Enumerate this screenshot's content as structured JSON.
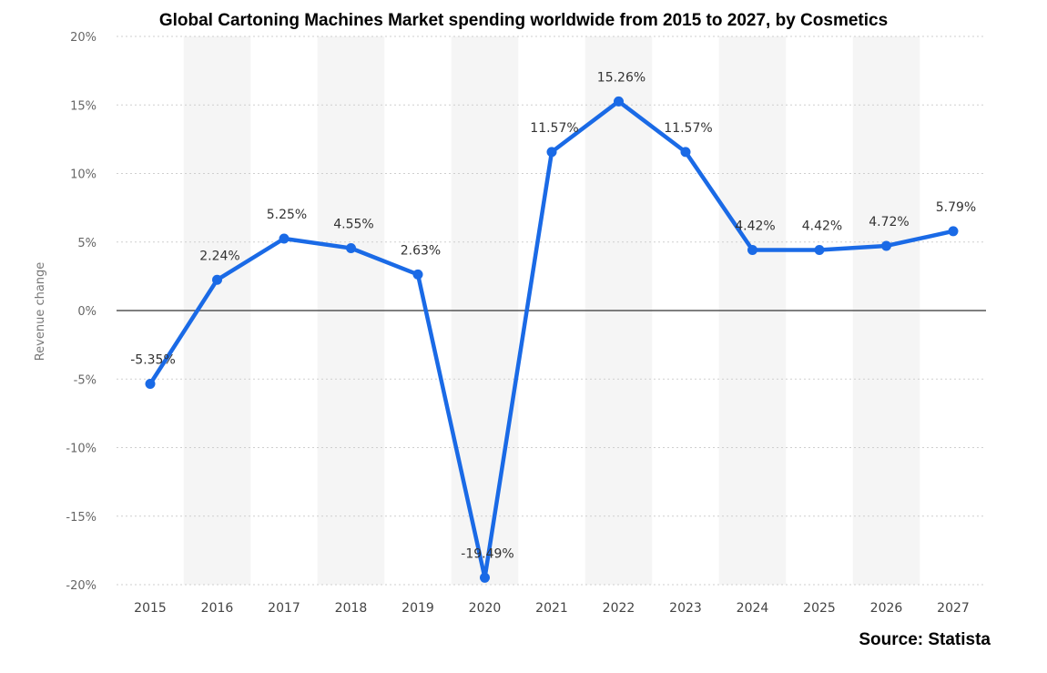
{
  "chart_data": {
    "type": "line",
    "title": "Global Cartoning Machines Market spending worldwide from 2015 to 2027, by Cosmetics",
    "source": "Source: Statista",
    "xlabel": "",
    "ylabel": "Revenue change",
    "ylim": [
      -20,
      20
    ],
    "yticks": [
      "20%",
      "15%",
      "10%",
      "5%",
      "0%",
      "-5%",
      "-10%",
      "-15%",
      "-20%"
    ],
    "categories": [
      "2015",
      "2016",
      "2017",
      "2018",
      "2019",
      "2020",
      "2021",
      "2022",
      "2023",
      "2024",
      "2025",
      "2026",
      "2027"
    ],
    "series": [
      {
        "values": [
          -5.35,
          2.24,
          5.25,
          4.55,
          2.63,
          -19.49,
          11.57,
          15.26,
          11.57,
          4.42,
          4.42,
          4.72,
          5.79
        ],
        "labels": [
          "-5.35%",
          "2.24%",
          "5.25%",
          "4.55%",
          "2.63%",
          "-19.49%",
          "11.57%",
          "15.26%",
          "11.57%",
          "4.42%",
          "4.42%",
          "4.72%",
          "5.79%"
        ],
        "color": "#1a6ae6"
      }
    ],
    "grid": true,
    "band_color": "#f5f5f5",
    "zero_line_color": "#555555"
  }
}
